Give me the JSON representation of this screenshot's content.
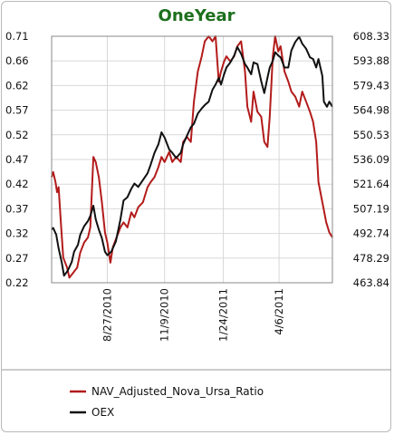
{
  "chart_data": {
    "type": "line",
    "title": "OneYear",
    "x_tick_labels": [
      "8/27/2010",
      "11/9/2010",
      "1/24/2011",
      "4/6/2011"
    ],
    "x_range": [
      "2010-06-16",
      "2011-06-14"
    ],
    "x_ticks": [
      "2010-08-27",
      "2010-11-09",
      "2011-01-24",
      "2011-04-06"
    ],
    "y_left": {
      "ylim": [
        0.22,
        0.71
      ],
      "tick_labels": [
        "0.71",
        "0.66",
        "0.62",
        "0.57",
        "0.52",
        "0.47",
        "0.42",
        "0.37",
        "0.32",
        "0.27",
        "0.22"
      ]
    },
    "y_right": {
      "ylim": [
        463.84,
        608.33
      ],
      "tick_labels": [
        "608.33",
        "593.88",
        "579.43",
        "564.98",
        "550.53",
        "536.09",
        "521.64",
        "507.19",
        "492.74",
        "478.29",
        "463.84"
      ]
    },
    "grid": true,
    "legend": "bottom",
    "series": [
      {
        "name": "NAV_Adjusted_Nova_Ursa_Ratio",
        "axis": "left",
        "color": "#b31b1b",
        "points": [
          [
            "2010-06-16",
            0.43
          ],
          [
            "2010-06-18",
            0.44
          ],
          [
            "2010-06-21",
            0.42
          ],
          [
            "2010-06-23",
            0.4
          ],
          [
            "2010-06-25",
            0.41
          ],
          [
            "2010-06-28",
            0.34
          ],
          [
            "2010-07-01",
            0.27
          ],
          [
            "2010-07-06",
            0.25
          ],
          [
            "2010-07-09",
            0.23
          ],
          [
            "2010-07-14",
            0.24
          ],
          [
            "2010-07-19",
            0.25
          ],
          [
            "2010-07-23",
            0.28
          ],
          [
            "2010-07-28",
            0.3
          ],
          [
            "2010-08-02",
            0.31
          ],
          [
            "2010-08-05",
            0.33
          ],
          [
            "2010-08-09",
            0.47
          ],
          [
            "2010-08-12",
            0.46
          ],
          [
            "2010-08-16",
            0.43
          ],
          [
            "2010-08-20",
            0.38
          ],
          [
            "2010-08-24",
            0.32
          ],
          [
            "2010-08-27",
            0.3
          ],
          [
            "2010-08-31",
            0.26
          ],
          [
            "2010-09-03",
            0.29
          ],
          [
            "2010-09-08",
            0.31
          ],
          [
            "2010-09-13",
            0.33
          ],
          [
            "2010-09-17",
            0.34
          ],
          [
            "2010-09-22",
            0.33
          ],
          [
            "2010-09-27",
            0.36
          ],
          [
            "2010-10-01",
            0.35
          ],
          [
            "2010-10-06",
            0.37
          ],
          [
            "2010-10-12",
            0.38
          ],
          [
            "2010-10-18",
            0.41
          ],
          [
            "2010-10-22",
            0.42
          ],
          [
            "2010-10-27",
            0.43
          ],
          [
            "2010-11-01",
            0.45
          ],
          [
            "2010-11-05",
            0.47
          ],
          [
            "2010-11-09",
            0.46
          ],
          [
            "2010-11-15",
            0.48
          ],
          [
            "2010-11-19",
            0.46
          ],
          [
            "2010-11-24",
            0.47
          ],
          [
            "2010-11-30",
            0.46
          ],
          [
            "2010-12-03",
            0.5
          ],
          [
            "2010-12-08",
            0.51
          ],
          [
            "2010-12-13",
            0.5
          ],
          [
            "2010-12-17",
            0.58
          ],
          [
            "2010-12-22",
            0.64
          ],
          [
            "2010-12-27",
            0.67
          ],
          [
            "2010-12-31",
            0.7
          ],
          [
            "2011-01-05",
            0.71
          ],
          [
            "2011-01-10",
            0.7
          ],
          [
            "2011-01-14",
            0.71
          ],
          [
            "2011-01-18",
            0.62
          ],
          [
            "2011-01-21",
            0.64
          ],
          [
            "2011-01-25",
            0.66
          ],
          [
            "2011-01-28",
            0.67
          ],
          [
            "2011-02-02",
            0.66
          ],
          [
            "2011-02-07",
            0.67
          ],
          [
            "2011-02-11",
            0.69
          ],
          [
            "2011-02-16",
            0.7
          ],
          [
            "2011-02-21",
            0.64
          ],
          [
            "2011-02-24",
            0.57
          ],
          [
            "2011-03-01",
            0.54
          ],
          [
            "2011-03-04",
            0.6
          ],
          [
            "2011-03-09",
            0.56
          ],
          [
            "2011-03-14",
            0.55
          ],
          [
            "2011-03-18",
            0.5
          ],
          [
            "2011-03-22",
            0.49
          ],
          [
            "2011-03-25",
            0.55
          ],
          [
            "2011-03-29",
            0.67
          ],
          [
            "2011-04-01",
            0.71
          ],
          [
            "2011-04-05",
            0.68
          ],
          [
            "2011-04-08",
            0.69
          ],
          [
            "2011-04-13",
            0.64
          ],
          [
            "2011-04-18",
            0.62
          ],
          [
            "2011-04-22",
            0.6
          ],
          [
            "2011-04-27",
            0.59
          ],
          [
            "2011-05-02",
            0.57
          ],
          [
            "2011-05-06",
            0.6
          ],
          [
            "2011-05-11",
            0.58
          ],
          [
            "2011-05-16",
            0.56
          ],
          [
            "2011-05-20",
            0.54
          ],
          [
            "2011-05-24",
            0.5
          ],
          [
            "2011-05-27",
            0.42
          ],
          [
            "2011-06-01",
            0.38
          ],
          [
            "2011-06-06",
            0.34
          ],
          [
            "2011-06-10",
            0.32
          ],
          [
            "2011-06-14",
            0.31
          ]
        ]
      },
      {
        "name": "OEX",
        "axis": "right",
        "color": "#111111",
        "points": [
          [
            "2010-06-16",
            495
          ],
          [
            "2010-06-18",
            496
          ],
          [
            "2010-06-22",
            492
          ],
          [
            "2010-06-25",
            484
          ],
          [
            "2010-06-29",
            476
          ],
          [
            "2010-07-02",
            468
          ],
          [
            "2010-07-07",
            471
          ],
          [
            "2010-07-12",
            476
          ],
          [
            "2010-07-15",
            482
          ],
          [
            "2010-07-20",
            486
          ],
          [
            "2010-07-23",
            492
          ],
          [
            "2010-07-28",
            497
          ],
          [
            "2010-08-02",
            500
          ],
          [
            "2010-08-05",
            503
          ],
          [
            "2010-08-09",
            509
          ],
          [
            "2010-08-12",
            501
          ],
          [
            "2010-08-16",
            495
          ],
          [
            "2010-08-20",
            490
          ],
          [
            "2010-08-24",
            482
          ],
          [
            "2010-08-27",
            480
          ],
          [
            "2010-09-01",
            482
          ],
          [
            "2010-09-07",
            488
          ],
          [
            "2010-09-13",
            501
          ],
          [
            "2010-09-17",
            512
          ],
          [
            "2010-09-22",
            514
          ],
          [
            "2010-09-27",
            519
          ],
          [
            "2010-10-01",
            522
          ],
          [
            "2010-10-06",
            520
          ],
          [
            "2010-10-12",
            524
          ],
          [
            "2010-10-18",
            528
          ],
          [
            "2010-10-22",
            533
          ],
          [
            "2010-10-27",
            540
          ],
          [
            "2010-11-01",
            545
          ],
          [
            "2010-11-05",
            552
          ],
          [
            "2010-11-09",
            549
          ],
          [
            "2010-11-15",
            542
          ],
          [
            "2010-11-19",
            540
          ],
          [
            "2010-11-24",
            537
          ],
          [
            "2010-11-30",
            540
          ],
          [
            "2010-12-03",
            545
          ],
          [
            "2010-12-08",
            550
          ],
          [
            "2010-12-13",
            555
          ],
          [
            "2010-12-17",
            557
          ],
          [
            "2010-12-22",
            563
          ],
          [
            "2010-12-27",
            566
          ],
          [
            "2010-12-31",
            568
          ],
          [
            "2011-01-05",
            570
          ],
          [
            "2011-01-10",
            577
          ],
          [
            "2011-01-14",
            580
          ],
          [
            "2011-01-18",
            584
          ],
          [
            "2011-01-21",
            580
          ],
          [
            "2011-01-25",
            586
          ],
          [
            "2011-01-28",
            590
          ],
          [
            "2011-02-02",
            593
          ],
          [
            "2011-02-07",
            597
          ],
          [
            "2011-02-11",
            602
          ],
          [
            "2011-02-16",
            598
          ],
          [
            "2011-02-21",
            592
          ],
          [
            "2011-02-24",
            590
          ],
          [
            "2011-03-01",
            586
          ],
          [
            "2011-03-04",
            593
          ],
          [
            "2011-03-09",
            592
          ],
          [
            "2011-03-14",
            582
          ],
          [
            "2011-03-18",
            575
          ],
          [
            "2011-03-22",
            584
          ],
          [
            "2011-03-25",
            590
          ],
          [
            "2011-03-29",
            594
          ],
          [
            "2011-04-01",
            599
          ],
          [
            "2011-04-05",
            597
          ],
          [
            "2011-04-08",
            596
          ],
          [
            "2011-04-13",
            590
          ],
          [
            "2011-04-18",
            590
          ],
          [
            "2011-04-22",
            600
          ],
          [
            "2011-04-27",
            605
          ],
          [
            "2011-05-02",
            608
          ],
          [
            "2011-05-06",
            604
          ],
          [
            "2011-05-11",
            601
          ],
          [
            "2011-05-16",
            596
          ],
          [
            "2011-05-20",
            595
          ],
          [
            "2011-05-24",
            590
          ],
          [
            "2011-05-27",
            595
          ],
          [
            "2011-06-01",
            585
          ],
          [
            "2011-06-03",
            570
          ],
          [
            "2011-06-07",
            567
          ],
          [
            "2011-06-10",
            570
          ],
          [
            "2011-06-14",
            567
          ]
        ]
      }
    ]
  }
}
